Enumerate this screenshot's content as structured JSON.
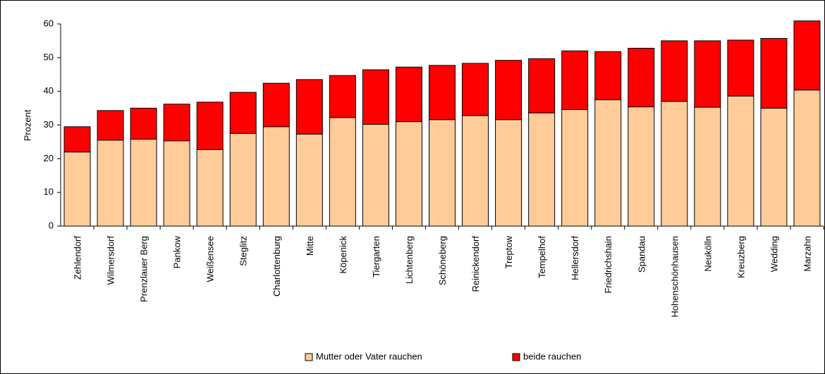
{
  "chart_data": {
    "type": "stacked_bar",
    "categories": [
      "Zehlendorf",
      "Wilmersdorf",
      "Prenzlauer Berg",
      "Pankow",
      "Weißensee",
      "Steglitz",
      "Charlottenburg",
      "Mitte",
      "Köpenick",
      "Tiergarten",
      "Lichtenberg",
      "Schöneberg",
      "Reinickendorf",
      "Treptow",
      "Tempelhof",
      "Hellersdorf",
      "Friedrichshain",
      "Spandau",
      "Hohenschönhausen",
      "Neukölln",
      "Kreuzberg",
      "Wedding",
      "Marzahn"
    ],
    "series": [
      {
        "name": "Mutter oder Vater rauchen",
        "color": "#ffcc99",
        "values": [
          22,
          25.5,
          25.8,
          25.3,
          22.7,
          27.5,
          29.5,
          27.3,
          32.2,
          30.2,
          31,
          31.6,
          32.8,
          31.6,
          33.6,
          34.6,
          37.5,
          35.4,
          37,
          35.3,
          38.6,
          35,
          40.4
        ]
      },
      {
        "name": "beide rauchen",
        "color": "#ff0000",
        "values": [
          7.5,
          8.8,
          9.2,
          10.9,
          14.1,
          12.2,
          12.9,
          16.2,
          12.5,
          16.2,
          16.2,
          16.1,
          15.5,
          17.6,
          16.1,
          17.4,
          14.3,
          17.4,
          18,
          19.7,
          16.6,
          20.7,
          20.5
        ]
      }
    ],
    "y_label": "Prozent",
    "ylim": [
      0,
      60
    ],
    "yticks": [
      0,
      10,
      20,
      30,
      40,
      50,
      60
    ],
    "grid": false
  }
}
